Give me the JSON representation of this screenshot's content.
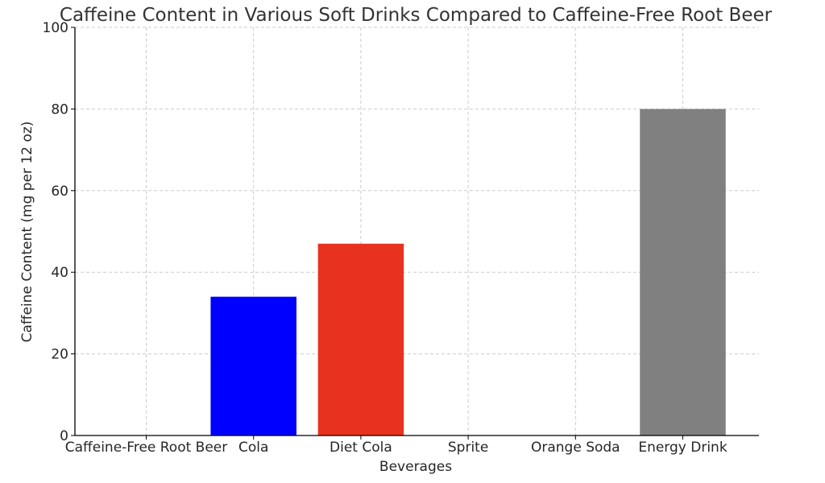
{
  "chart_data": {
    "type": "bar",
    "title": "Caffeine Content in Various Soft Drinks Compared to Caffeine-Free Root Beer",
    "xlabel": "Beverages",
    "ylabel": "Caffeine Content (mg per 12 oz)",
    "categories": [
      "Caffeine-Free Root Beer",
      "Cola",
      "Diet Cola",
      "Sprite",
      "Orange Soda",
      "Energy Drink"
    ],
    "values": [
      0,
      34,
      47,
      0,
      0,
      80
    ],
    "colors": [
      "#808080",
      "#0000ff",
      "#e8321e",
      "#00ff00",
      "#ffa500",
      "#808080"
    ],
    "ylim": [
      0,
      100
    ],
    "yticks": [
      0,
      20,
      40,
      60,
      80,
      100
    ],
    "grid": true,
    "legend": "none"
  }
}
